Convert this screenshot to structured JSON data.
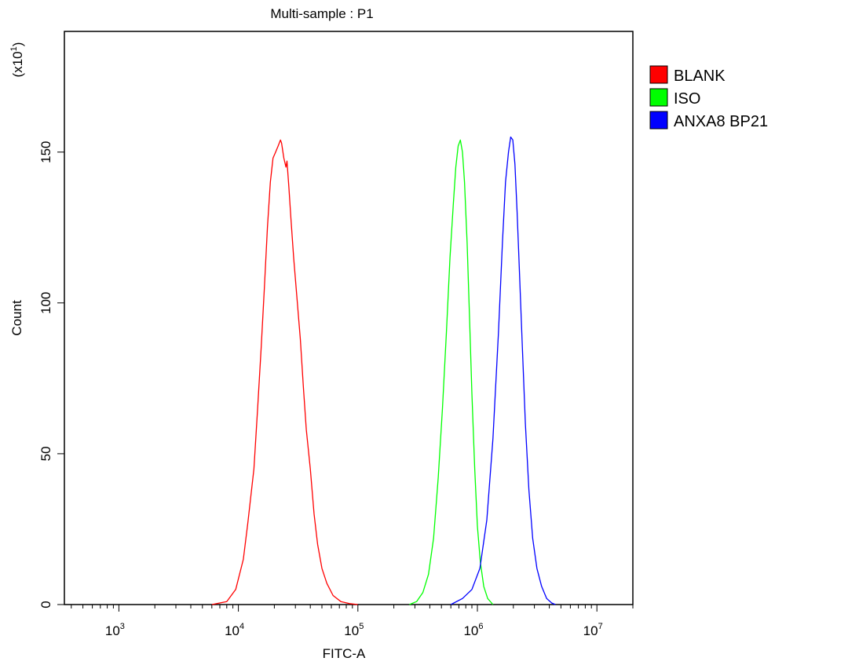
{
  "chart_data": {
    "type": "line",
    "title": "Multi-sample : P1",
    "xlabel": "FITC-A",
    "ylabel": "Count",
    "y_multiplier_label": "(x10",
    "y_multiplier_exp": "1",
    "y_multiplier_close": ")",
    "x_scale": "log",
    "xlim": [
      350,
      20000000
    ],
    "ylim": [
      0,
      190
    ],
    "x_ticks": [
      {
        "base": "10",
        "exp": "3",
        "value": 1000
      },
      {
        "base": "10",
        "exp": "4",
        "value": 10000
      },
      {
        "base": "10",
        "exp": "5",
        "value": 100000
      },
      {
        "base": "10",
        "exp": "6",
        "value": 1000000
      },
      {
        "base": "10",
        "exp": "7",
        "value": 10000000
      }
    ],
    "y_ticks": [
      {
        "label": "0",
        "value": 0
      },
      {
        "label": "50",
        "value": 50
      },
      {
        "label": "100",
        "value": 100
      },
      {
        "label": "150",
        "value": 150
      }
    ],
    "grid": false,
    "legend_position": "right",
    "series": [
      {
        "name": "BLANK",
        "color": "#ff0000",
        "x": [
          6000,
          8000,
          9500,
          11000,
          12000,
          13500,
          14500,
          15500,
          16500,
          17500,
          18500,
          19500,
          20500,
          21500,
          22500,
          23000,
          24000,
          25000,
          25500,
          26500,
          27500,
          29000,
          31000,
          33000,
          35000,
          37000,
          40000,
          43000,
          46000,
          50000,
          55000,
          62000,
          72000,
          85000,
          100000
        ],
        "y": [
          0,
          1,
          5,
          15,
          27,
          45,
          65,
          85,
          105,
          125,
          140,
          148,
          150,
          152,
          154,
          153,
          148,
          145,
          147,
          138,
          128,
          115,
          101,
          88,
          72,
          58,
          45,
          30,
          20,
          12,
          7,
          3,
          1,
          0.3,
          0
        ]
      },
      {
        "name": "ISO",
        "color": "#00ff00",
        "x": [
          270000,
          310000,
          350000,
          390000,
          430000,
          470000,
          510000,
          550000,
          590000,
          630000,
          660000,
          690000,
          720000,
          750000,
          780000,
          820000,
          860000,
          900000,
          950000,
          1000000,
          1060000,
          1130000,
          1220000,
          1350000
        ],
        "y": [
          0,
          1,
          4,
          10,
          22,
          42,
          65,
          90,
          115,
          133,
          145,
          152,
          154,
          150,
          140,
          120,
          95,
          70,
          45,
          26,
          14,
          6,
          2,
          0
        ]
      },
      {
        "name": "ANXA8 BP21",
        "color": "#0000ff",
        "x": [
          600000,
          750000,
          900000,
          1050000,
          1200000,
          1350000,
          1500000,
          1620000,
          1720000,
          1820000,
          1900000,
          1980000,
          2060000,
          2150000,
          2250000,
          2380000,
          2520000,
          2700000,
          2900000,
          3150000,
          3450000,
          3800000,
          4200000,
          4500000
        ],
        "y": [
          0,
          2,
          5,
          12,
          28,
          55,
          90,
          120,
          140,
          150,
          155,
          154,
          146,
          130,
          110,
          85,
          60,
          38,
          22,
          12,
          6,
          2,
          0.5,
          0
        ]
      }
    ]
  }
}
